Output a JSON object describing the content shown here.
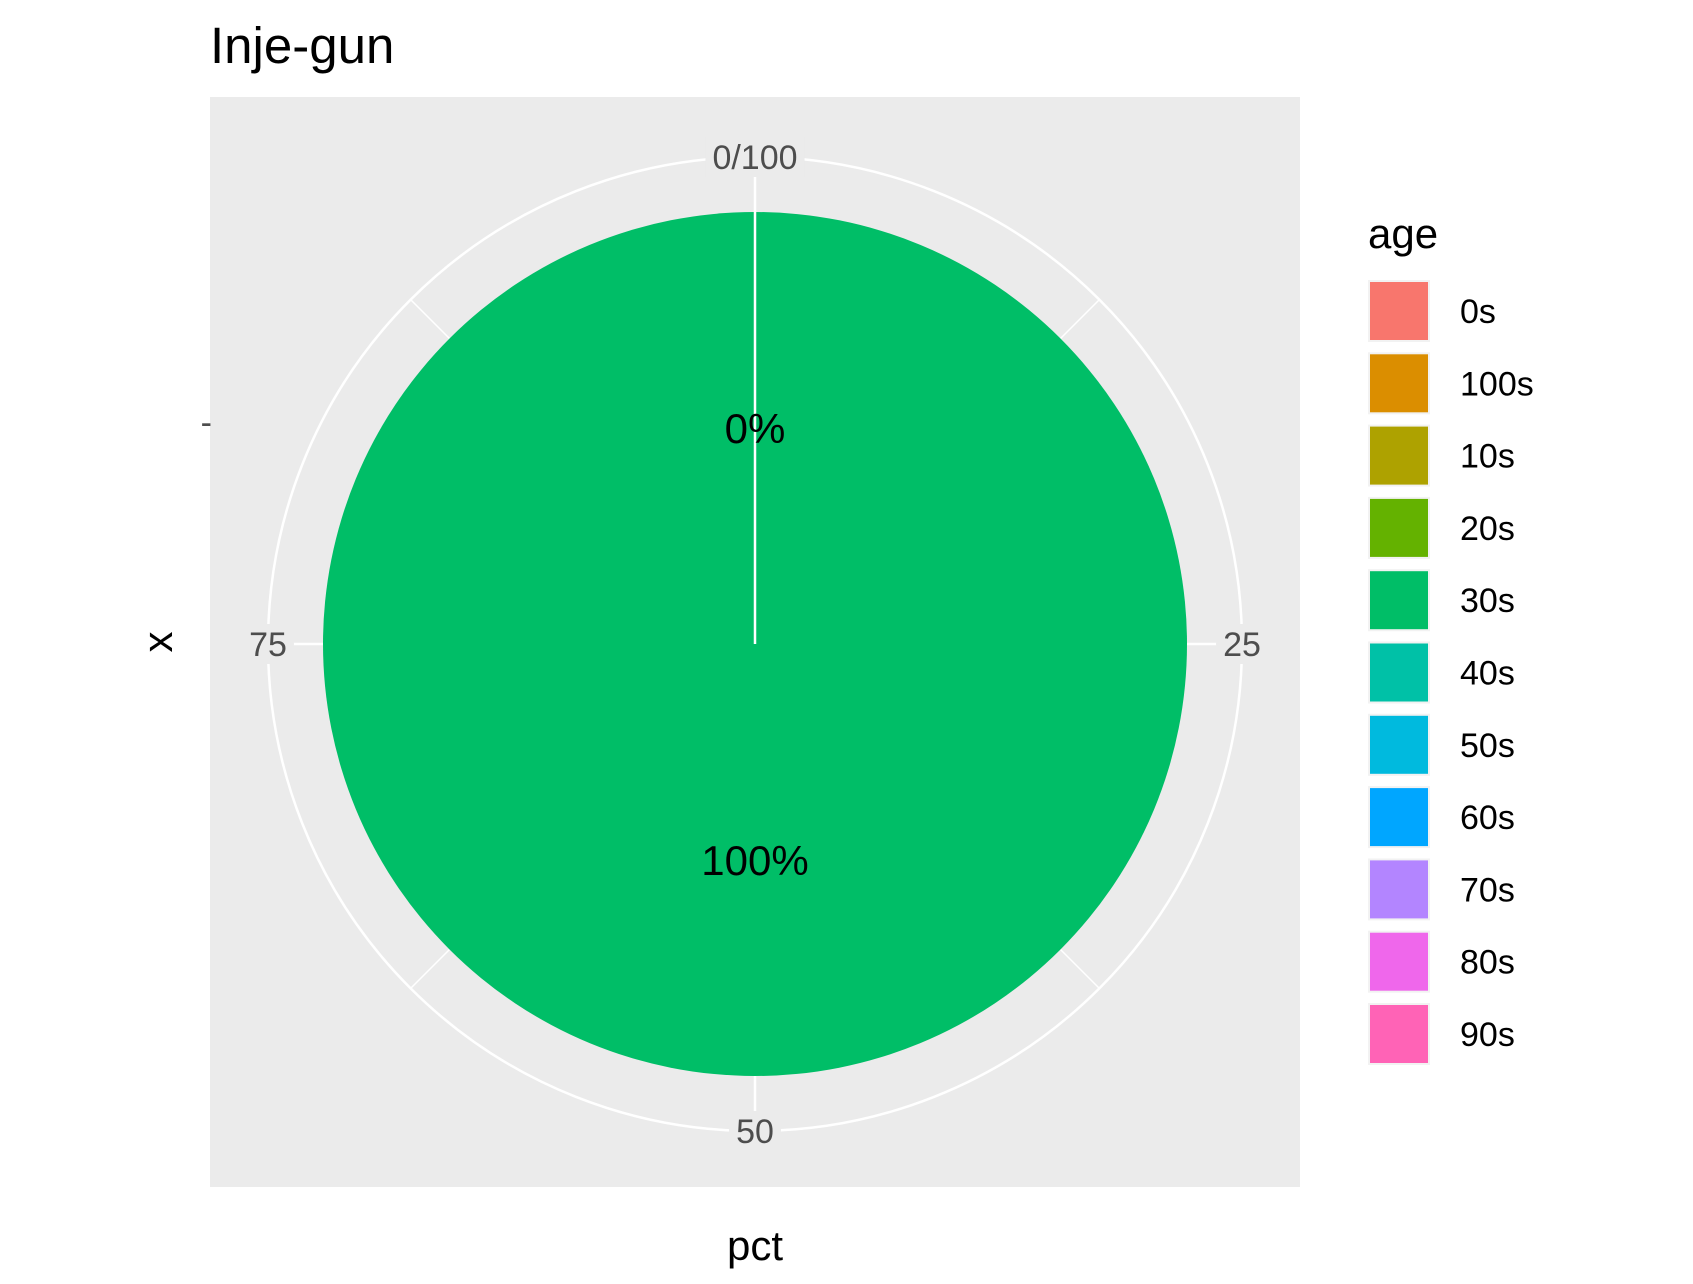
{
  "chart_data": {
    "type": "pie",
    "title": "Inje-gun",
    "xlabel": "pct",
    "ylabel": "x",
    "y_tick_labels": [
      "-"
    ],
    "theta_tick_labels": [
      "0/100",
      "25",
      "50",
      "75"
    ],
    "theta_ticks": [
      0,
      25,
      50,
      75
    ],
    "theta_range": [
      0,
      100
    ],
    "slices": [
      {
        "label": "30s",
        "value": 100,
        "text": "100%",
        "color": "#00BE67"
      },
      {
        "label": "20s",
        "value": 0,
        "text": "0%",
        "color": "#64B200"
      }
    ],
    "legend": {
      "title": "age",
      "position": "right",
      "items": [
        {
          "label": "0s",
          "color": "#F8766D"
        },
        {
          "label": "100s",
          "color": "#DB8E00"
        },
        {
          "label": "10s",
          "color": "#AEA200"
        },
        {
          "label": "20s",
          "color": "#64B200"
        },
        {
          "label": "30s",
          "color": "#00BE67"
        },
        {
          "label": "40s",
          "color": "#00C1A7"
        },
        {
          "label": "50s",
          "color": "#00BADE"
        },
        {
          "label": "60s",
          "color": "#00A6FF"
        },
        {
          "label": "70s",
          "color": "#B385FF"
        },
        {
          "label": "80s",
          "color": "#EF67EB"
        },
        {
          "label": "90s",
          "color": "#FF63B6"
        }
      ]
    },
    "panel_background": "#EBEBEB",
    "grid_color": "#FFFFFF",
    "grid": true
  }
}
